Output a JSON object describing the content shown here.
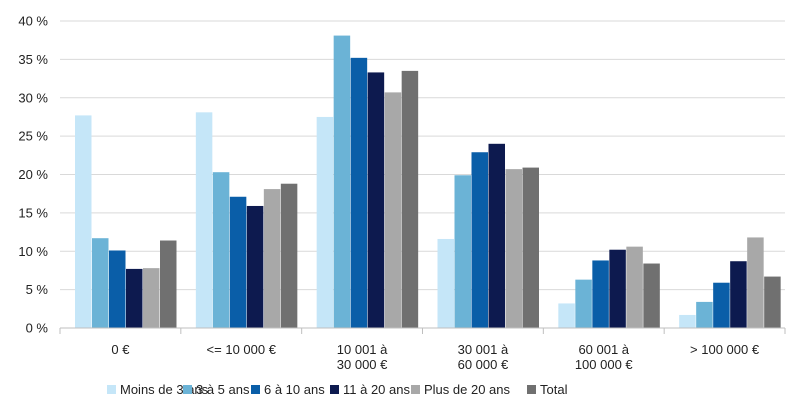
{
  "chart_data": {
    "type": "bar",
    "categories": [
      [
        "0 €"
      ],
      [
        "<= 10 000 €"
      ],
      [
        "10 001 à",
        "30 000 €"
      ],
      [
        "30 001 à",
        "60 000 €"
      ],
      [
        "60 001 à",
        "100 000 €"
      ],
      [
        "> 100 000 €"
      ]
    ],
    "series": [
      {
        "name": "Moins de 3 ans",
        "color": "#c5e6f8",
        "values": [
          27.7,
          28.1,
          27.5,
          11.6,
          3.2,
          1.7
        ]
      },
      {
        "name": "3 à 5 ans",
        "color": "#6bb3d6",
        "values": [
          11.7,
          20.3,
          38.1,
          19.9,
          6.3,
          3.4
        ]
      },
      {
        "name": "6 à 10 ans",
        "color": "#0a5ea8",
        "values": [
          10.1,
          17.1,
          35.2,
          22.9,
          8.8,
          5.9
        ]
      },
      {
        "name": "11 à 20 ans",
        "color": "#0d1a4f",
        "values": [
          7.7,
          15.9,
          33.3,
          24.0,
          10.2,
          8.7
        ]
      },
      {
        "name": "Plus de 20 ans",
        "color": "#a8a8a8",
        "values": [
          7.8,
          18.1,
          30.7,
          20.7,
          10.6,
          11.8
        ]
      },
      {
        "name": "Total",
        "color": "#707070",
        "values": [
          11.4,
          18.8,
          33.5,
          20.9,
          8.4,
          6.7
        ]
      }
    ],
    "y_ticks": [
      "0 %",
      "5 %",
      "10 %",
      "15 %",
      "20 %",
      "25 %",
      "30 %",
      "35 %",
      "40 %"
    ],
    "ylim": [
      0,
      40
    ],
    "grid": true,
    "legend_position": "bottom"
  }
}
